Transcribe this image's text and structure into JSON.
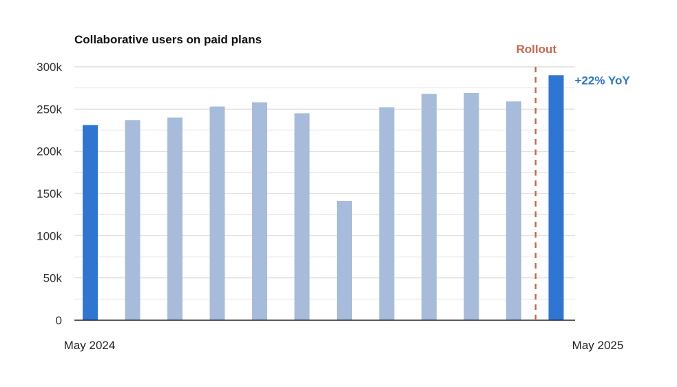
{
  "chart_data": {
    "type": "bar",
    "title": "Collaborative users on paid plans",
    "xlabel": "",
    "ylabel": "",
    "ylim": [
      0,
      300000
    ],
    "y_ticks": [
      {
        "value": 0,
        "label": "0"
      },
      {
        "value": 50000,
        "label": "50k"
      },
      {
        "value": 100000,
        "label": "100k"
      },
      {
        "value": 150000,
        "label": "150k"
      },
      {
        "value": 200000,
        "label": "200k"
      },
      {
        "value": 250000,
        "label": "250k"
      },
      {
        "value": 300000,
        "label": "300k"
      }
    ],
    "x_tick_labels": [
      {
        "index": 0,
        "label": "May 2024"
      },
      {
        "index": 12,
        "label": "May 2025"
      }
    ],
    "values": [
      231000,
      237000,
      240000,
      253000,
      258000,
      245000,
      141000,
      252000,
      268000,
      269000,
      259000,
      290000
    ],
    "highlighted": [
      0,
      11
    ],
    "grid": true,
    "colors": {
      "bar": "#a7bcdb",
      "highlight": "#2f76d2",
      "rollout": "#c8694a",
      "grid": "#cccccc",
      "axis": "#222222"
    },
    "annotations": [
      {
        "name": "rollout",
        "text": "Rollout",
        "between": [
          10,
          11
        ],
        "style": "dashed-vertical-line"
      },
      {
        "name": "yoy",
        "text": "+22% YoY",
        "bar": 11
      }
    ]
  }
}
